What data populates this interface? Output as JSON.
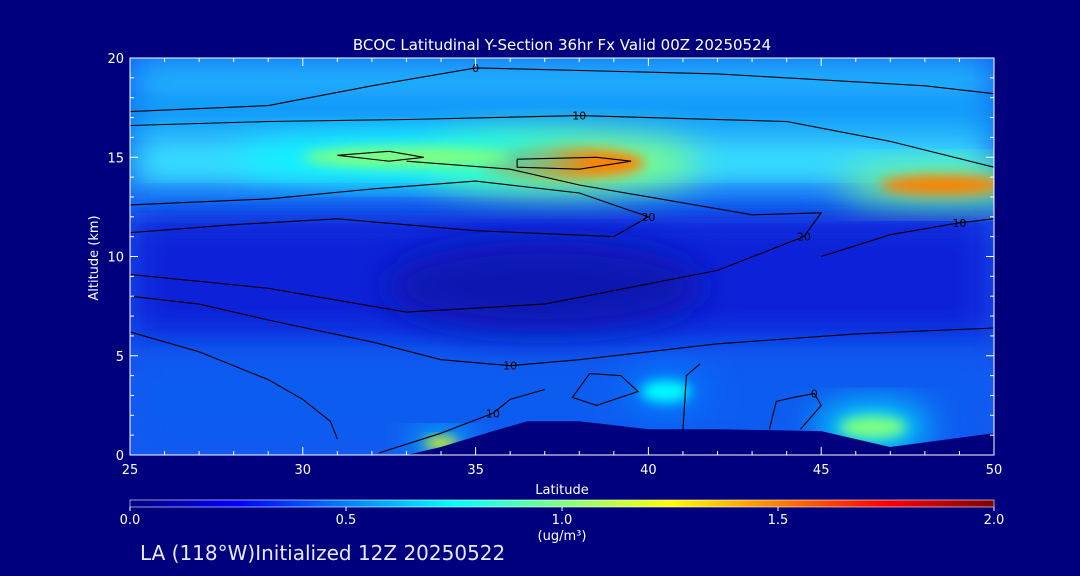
{
  "chart_data": {
    "type": "heatmap",
    "title": "BCOC Latitudinal Y-Section 36hr  Fx Valid 00Z 20250524",
    "xlabel": "Latitude",
    "ylabel": "Altitude (km)",
    "xlim": [
      25,
      50
    ],
    "ylim": [
      0,
      20
    ],
    "x_ticks": [
      25,
      30,
      35,
      40,
      45,
      50
    ],
    "y_ticks": [
      0,
      5,
      10,
      15,
      20
    ],
    "colorbar": {
      "min": 0.0,
      "max": 2.0,
      "ticks": [
        "0.0",
        "0.5",
        "1.0",
        "1.5",
        "2.0"
      ],
      "unit": "(ug/m³)",
      "colors": [
        "#00007f",
        "#0000ff",
        "#0080ff",
        "#00ffff",
        "#80ff80",
        "#ffff00",
        "#ff8000",
        "#ff0000",
        "#7f0000"
      ]
    },
    "field_features": [
      {
        "lat": 37.5,
        "alt": 14.7,
        "value": 1.6,
        "spread_lat": 4.0,
        "spread_alt": 1.4
      },
      {
        "lat": 48.5,
        "alt": 13.6,
        "value": 1.55,
        "spread_lat": 3.0,
        "spread_alt": 0.9
      },
      {
        "lat": 33.0,
        "alt": 15.0,
        "value": 1.0,
        "spread_lat": 5.0,
        "spread_alt": 1.0
      },
      {
        "lat": 46.5,
        "alt": 1.4,
        "value": 1.1,
        "spread_lat": 1.6,
        "spread_alt": 1.0
      },
      {
        "lat": 34.0,
        "alt": 0.6,
        "value": 1.2,
        "spread_lat": 0.8,
        "spread_alt": 0.5
      },
      {
        "lat": 40.5,
        "alt": 3.2,
        "value": 0.85,
        "spread_lat": 1.2,
        "spread_alt": 1.0
      }
    ],
    "terrain": [
      {
        "lat": 25,
        "alt": 0.0
      },
      {
        "lat": 33,
        "alt": 0.0
      },
      {
        "lat": 34,
        "alt": 0.4
      },
      {
        "lat": 35.5,
        "alt": 1.2
      },
      {
        "lat": 36.5,
        "alt": 1.7
      },
      {
        "lat": 38,
        "alt": 1.7
      },
      {
        "lat": 40,
        "alt": 1.3
      },
      {
        "lat": 42,
        "alt": 1.3
      },
      {
        "lat": 45,
        "alt": 1.2
      },
      {
        "lat": 47,
        "alt": 0.4
      },
      {
        "lat": 50,
        "alt": 1.1
      }
    ],
    "contours": [
      {
        "label": "0",
        "points": [
          [
            25,
            17.3
          ],
          [
            29,
            17.6
          ],
          [
            32,
            18.6
          ],
          [
            35,
            19.5
          ],
          [
            42,
            19.2
          ],
          [
            48,
            18.6
          ],
          [
            50,
            18.2
          ]
        ]
      },
      {
        "label": "10",
        "points": [
          [
            25,
            16.6
          ],
          [
            29,
            16.8
          ],
          [
            33,
            16.9
          ],
          [
            38,
            17.1
          ],
          [
            44,
            16.8
          ],
          [
            47,
            15.8
          ],
          [
            50,
            14.5
          ]
        ]
      },
      {
        "label": "20",
        "points": [
          [
            25,
            12.6
          ],
          [
            29,
            12.9
          ],
          [
            32,
            13.4
          ],
          [
            35,
            13.8
          ],
          [
            38,
            13.2
          ],
          [
            40,
            12.0
          ],
          [
            39,
            11.0
          ],
          [
            35,
            11.3
          ],
          [
            31,
            11.9
          ],
          [
            28,
            11.6
          ],
          [
            25,
            11.2
          ]
        ]
      },
      {
        "label": "20",
        "points": [
          [
            33,
            14.8
          ],
          [
            36,
            14.4
          ],
          [
            38,
            13.6
          ],
          [
            43,
            12.1
          ],
          [
            45,
            12.2
          ],
          [
            44.5,
            11.0
          ],
          [
            42,
            9.3
          ],
          [
            37,
            7.6
          ],
          [
            33,
            7.2
          ],
          [
            29,
            8.4
          ],
          [
            25,
            9.1
          ]
        ]
      },
      {
        "label": "10",
        "points": [
          [
            25,
            8.0
          ],
          [
            27,
            7.6
          ],
          [
            29,
            6.8
          ],
          [
            32,
            5.7
          ],
          [
            34,
            4.8
          ],
          [
            36,
            4.5
          ],
          [
            38,
            4.8
          ],
          [
            42,
            5.6
          ],
          [
            46,
            6.1
          ],
          [
            50,
            6.4
          ]
        ]
      },
      {
        "label": "10",
        "points": [
          [
            45,
            10.0
          ],
          [
            47,
            11.1
          ],
          [
            49,
            11.7
          ],
          [
            50,
            11.9
          ]
        ]
      },
      {
        "label": "",
        "points": [
          [
            25,
            6.2
          ],
          [
            27,
            5.2
          ],
          [
            29,
            3.8
          ],
          [
            30,
            2.8
          ],
          [
            30.8,
            1.7
          ],
          [
            31,
            0.8
          ]
        ]
      },
      {
        "label": "10",
        "points": [
          [
            32.2,
            0.1
          ],
          [
            34,
            1.1
          ],
          [
            35.5,
            2.1
          ],
          [
            36,
            2.8
          ],
          [
            37,
            3.3
          ]
        ]
      },
      {
        "label": "",
        "points": [
          [
            38.3,
            4.1
          ],
          [
            39.2,
            4.0
          ],
          [
            39.7,
            3.2
          ],
          [
            38.5,
            2.5
          ],
          [
            37.8,
            2.9
          ],
          [
            38.3,
            4.1
          ]
        ]
      },
      {
        "label": "",
        "points": [
          [
            41,
            1.3
          ],
          [
            41.1,
            4.0
          ],
          [
            41.5,
            4.6
          ]
        ]
      },
      {
        "label": "0",
        "points": [
          [
            43.5,
            1.3
          ],
          [
            43.7,
            2.7
          ],
          [
            44.2,
            2.9
          ],
          [
            44.8,
            3.1
          ],
          [
            45,
            2.5
          ],
          [
            44.4,
            1.3
          ]
        ]
      },
      {
        "label": "",
        "points": [
          [
            31,
            15.1
          ],
          [
            32.5,
            15.3
          ],
          [
            33.5,
            15.0
          ],
          [
            32.5,
            14.8
          ],
          [
            31,
            15.1
          ]
        ]
      },
      {
        "label": "",
        "points": [
          [
            36.2,
            14.9
          ],
          [
            38.5,
            15.0
          ],
          [
            39.5,
            14.8
          ],
          [
            38,
            14.4
          ],
          [
            36.2,
            14.5
          ],
          [
            36.2,
            14.9
          ]
        ]
      }
    ]
  },
  "footer": "LA (118°W)Initialized 12Z 20250522"
}
